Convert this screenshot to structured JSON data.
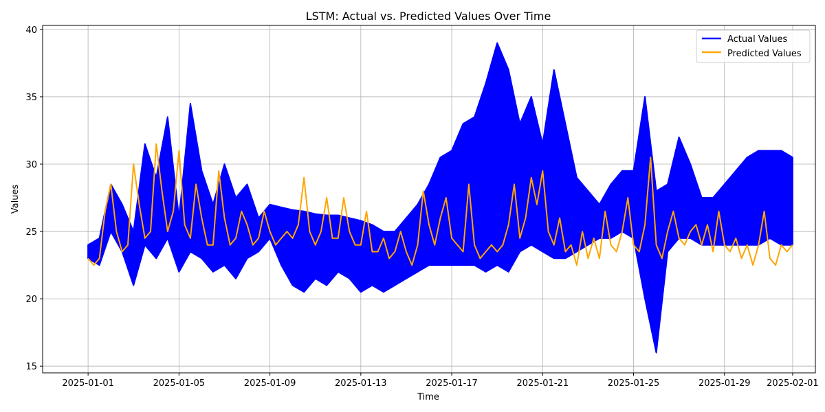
{
  "chart_data": {
    "type": "line",
    "title": "LSTM: Actual vs. Predicted Values Over Time",
    "xlabel": "Time",
    "ylabel": "Values",
    "grid": true,
    "legend_position": "top-right",
    "xlim": [
      "2024-12-30",
      "2025-02-02"
    ],
    "ylim": [
      14.5,
      40.3
    ],
    "x_ticks": [
      "2025-01-01",
      "2025-01-05",
      "2025-01-09",
      "2025-01-13",
      "2025-01-17",
      "2025-01-21",
      "2025-01-25",
      "2025-01-29",
      "2025-02-01"
    ],
    "y_ticks": [
      15,
      20,
      25,
      30,
      35,
      40
    ],
    "series": [
      {
        "name": "Actual Values",
        "color": "#0000ff",
        "points": [
          [
            "2025-01-01",
            24.0,
            23.0
          ],
          [
            "2025-01-01 12:00",
            24.5,
            22.5
          ],
          [
            "2025-01-02",
            28.5,
            25.0
          ],
          [
            "2025-01-02 12:00",
            27.0,
            23.5
          ],
          [
            "2025-01-03",
            25.0,
            21.0
          ],
          [
            "2025-01-03 12:00",
            31.5,
            24.0
          ],
          [
            "2025-01-04",
            29.0,
            23.0
          ],
          [
            "2025-01-04 12:00",
            33.5,
            24.5
          ],
          [
            "2025-01-05",
            26.0,
            22.0
          ],
          [
            "2025-01-05 12:00",
            34.5,
            23.5
          ],
          [
            "2025-01-06",
            29.5,
            23.0
          ],
          [
            "2025-01-06 12:00",
            27.0,
            22.0
          ],
          [
            "2025-01-07",
            30.0,
            22.5
          ],
          [
            "2025-01-07 12:00",
            27.5,
            21.5
          ],
          [
            "2025-01-08",
            28.5,
            23.0
          ],
          [
            "2025-01-08 12:00",
            26.0,
            23.5
          ],
          [
            "2025-01-09",
            27.0,
            24.5
          ],
          [
            "2025-01-09 12:00",
            26.8,
            22.5
          ],
          [
            "2025-01-10",
            26.6,
            21.0
          ],
          [
            "2025-01-10 12:00",
            26.5,
            20.5
          ],
          [
            "2025-01-11",
            26.3,
            21.5
          ],
          [
            "2025-01-11 12:00",
            26.2,
            21.0
          ],
          [
            "2025-01-12",
            26.2,
            22.0
          ],
          [
            "2025-01-12 12:00",
            26.0,
            21.5
          ],
          [
            "2025-01-13",
            25.8,
            20.5
          ],
          [
            "2025-01-13 12:00",
            25.5,
            21.0
          ],
          [
            "2025-01-14",
            25.0,
            20.5
          ],
          [
            "2025-01-14 12:00",
            25.0,
            21.0
          ],
          [
            "2025-01-15",
            26.0,
            21.5
          ],
          [
            "2025-01-15 12:00",
            27.0,
            22.0
          ],
          [
            "2025-01-16",
            28.5,
            22.5
          ],
          [
            "2025-01-16 12:00",
            30.5,
            22.5
          ],
          [
            "2025-01-17",
            31.0,
            22.5
          ],
          [
            "2025-01-17 12:00",
            33.0,
            22.5
          ],
          [
            "2025-01-18",
            33.5,
            22.5
          ],
          [
            "2025-01-18 12:00",
            36.0,
            22.0
          ],
          [
            "2025-01-19",
            39.0,
            22.5
          ],
          [
            "2025-01-19 12:00",
            37.0,
            22.0
          ],
          [
            "2025-01-20",
            33.0,
            23.5
          ],
          [
            "2025-01-20 12:00",
            35.0,
            24.0
          ],
          [
            "2025-01-21",
            31.5,
            23.5
          ],
          [
            "2025-01-21 12:00",
            37.0,
            23.0
          ],
          [
            "2025-01-22",
            33.0,
            23.0
          ],
          [
            "2025-01-22 12:00",
            29.0,
            23.5
          ],
          [
            "2025-01-23",
            28.0,
            24.0
          ],
          [
            "2025-01-23 12:00",
            27.0,
            24.5
          ],
          [
            "2025-01-24",
            28.5,
            24.5
          ],
          [
            "2025-01-24 12:00",
            29.5,
            25.0
          ],
          [
            "2025-01-25",
            29.5,
            24.5
          ],
          [
            "2025-01-25 12:00",
            35.0,
            20.0
          ],
          [
            "2025-01-26",
            28.0,
            16.0
          ],
          [
            "2025-01-26 12:00",
            28.5,
            23.5
          ],
          [
            "2025-01-27",
            32.0,
            24.5
          ],
          [
            "2025-01-27 12:00",
            30.0,
            24.5
          ],
          [
            "2025-01-28",
            27.5,
            24.0
          ],
          [
            "2025-01-28 12:00",
            27.5,
            24.0
          ],
          [
            "2025-01-29",
            28.5,
            24.0
          ],
          [
            "2025-01-29 12:00",
            29.5,
            24.0
          ],
          [
            "2025-01-30",
            30.5,
            24.0
          ],
          [
            "2025-01-30 12:00",
            31.0,
            24.0
          ],
          [
            "2025-01-31",
            31.0,
            24.5
          ],
          [
            "2025-01-31 12:00",
            31.0,
            24.0
          ],
          [
            "2025-02-01",
            30.5,
            24.0
          ]
        ]
      },
      {
        "name": "Predicted Values",
        "color": "#ffa500",
        "points": [
          [
            "2025-01-01",
            23.0
          ],
          [
            "2025-01-01 06:00",
            22.5
          ],
          [
            "2025-01-01 12:00",
            23.0
          ],
          [
            "2025-01-01 18:00",
            26.5
          ],
          [
            "2025-01-02",
            28.5
          ],
          [
            "2025-01-02 06:00",
            25.0
          ],
          [
            "2025-01-02 12:00",
            23.5
          ],
          [
            "2025-01-02 18:00",
            24.0
          ],
          [
            "2025-01-03",
            30.0
          ],
          [
            "2025-01-03 06:00",
            27.0
          ],
          [
            "2025-01-03 12:00",
            24.5
          ],
          [
            "2025-01-03 18:00",
            25.0
          ],
          [
            "2025-01-04",
            31.5
          ],
          [
            "2025-01-04 06:00",
            28.0
          ],
          [
            "2025-01-04 12:00",
            25.0
          ],
          [
            "2025-01-04 18:00",
            26.5
          ],
          [
            "2025-01-05",
            31.0
          ],
          [
            "2025-01-05 06:00",
            25.5
          ],
          [
            "2025-01-05 12:00",
            24.5
          ],
          [
            "2025-01-05 18:00",
            28.5
          ],
          [
            "2025-01-06",
            26.0
          ],
          [
            "2025-01-06 06:00",
            24.0
          ],
          [
            "2025-01-06 12:00",
            24.0
          ],
          [
            "2025-01-06 18:00",
            29.5
          ],
          [
            "2025-01-07",
            26.0
          ],
          [
            "2025-01-07 06:00",
            24.0
          ],
          [
            "2025-01-07 12:00",
            24.5
          ],
          [
            "2025-01-07 18:00",
            26.5
          ],
          [
            "2025-01-08",
            25.5
          ],
          [
            "2025-01-08 06:00",
            24.0
          ],
          [
            "2025-01-08 12:00",
            24.5
          ],
          [
            "2025-01-08 18:00",
            26.5
          ],
          [
            "2025-01-09",
            25.0
          ],
          [
            "2025-01-09 06:00",
            24.0
          ],
          [
            "2025-01-09 12:00",
            24.5
          ],
          [
            "2025-01-09 18:00",
            25.0
          ],
          [
            "2025-01-10",
            24.5
          ],
          [
            "2025-01-10 06:00",
            25.5
          ],
          [
            "2025-01-10 12:00",
            29.0
          ],
          [
            "2025-01-10 18:00",
            25.0
          ],
          [
            "2025-01-11",
            24.0
          ],
          [
            "2025-01-11 06:00",
            25.0
          ],
          [
            "2025-01-11 12:00",
            27.5
          ],
          [
            "2025-01-11 18:00",
            24.5
          ],
          [
            "2025-01-12",
            24.5
          ],
          [
            "2025-01-12 06:00",
            27.5
          ],
          [
            "2025-01-12 12:00",
            25.0
          ],
          [
            "2025-01-12 18:00",
            24.0
          ],
          [
            "2025-01-13",
            24.0
          ],
          [
            "2025-01-13 06:00",
            26.5
          ],
          [
            "2025-01-13 12:00",
            23.5
          ],
          [
            "2025-01-13 18:00",
            23.5
          ],
          [
            "2025-01-14",
            24.5
          ],
          [
            "2025-01-14 06:00",
            23.0
          ],
          [
            "2025-01-14 12:00",
            23.5
          ],
          [
            "2025-01-14 18:00",
            25.0
          ],
          [
            "2025-01-15",
            23.5
          ],
          [
            "2025-01-15 06:00",
            22.5
          ],
          [
            "2025-01-15 12:00",
            24.0
          ],
          [
            "2025-01-15 18:00",
            28.0
          ],
          [
            "2025-01-16",
            25.5
          ],
          [
            "2025-01-16 06:00",
            24.0
          ],
          [
            "2025-01-16 12:00",
            26.0
          ],
          [
            "2025-01-16 18:00",
            27.5
          ],
          [
            "2025-01-17",
            24.5
          ],
          [
            "2025-01-17 06:00",
            24.0
          ],
          [
            "2025-01-17 12:00",
            23.5
          ],
          [
            "2025-01-17 18:00",
            28.5
          ],
          [
            "2025-01-18",
            24.0
          ],
          [
            "2025-01-18 06:00",
            23.0
          ],
          [
            "2025-01-18 12:00",
            23.5
          ],
          [
            "2025-01-18 18:00",
            24.0
          ],
          [
            "2025-01-19",
            23.5
          ],
          [
            "2025-01-19 06:00",
            24.0
          ],
          [
            "2025-01-19 12:00",
            25.5
          ],
          [
            "2025-01-19 18:00",
            28.5
          ],
          [
            "2025-01-20",
            24.5
          ],
          [
            "2025-01-20 06:00",
            26.0
          ],
          [
            "2025-01-20 12:00",
            29.0
          ],
          [
            "2025-01-20 18:00",
            27.0
          ],
          [
            "2025-01-21",
            29.5
          ],
          [
            "2025-01-21 06:00",
            25.0
          ],
          [
            "2025-01-21 12:00",
            24.0
          ],
          [
            "2025-01-21 18:00",
            26.0
          ],
          [
            "2025-01-22",
            23.5
          ],
          [
            "2025-01-22 06:00",
            24.0
          ],
          [
            "2025-01-22 12:00",
            22.5
          ],
          [
            "2025-01-22 18:00",
            25.0
          ],
          [
            "2025-01-23",
            23.0
          ],
          [
            "2025-01-23 06:00",
            24.5
          ],
          [
            "2025-01-23 12:00",
            23.0
          ],
          [
            "2025-01-23 18:00",
            26.5
          ],
          [
            "2025-01-24",
            24.0
          ],
          [
            "2025-01-24 06:00",
            23.5
          ],
          [
            "2025-01-24 12:00",
            25.0
          ],
          [
            "2025-01-24 18:00",
            27.5
          ],
          [
            "2025-01-25",
            24.0
          ],
          [
            "2025-01-25 06:00",
            23.5
          ],
          [
            "2025-01-25 12:00",
            25.5
          ],
          [
            "2025-01-25 18:00",
            30.5
          ],
          [
            "2025-01-26",
            24.0
          ],
          [
            "2025-01-26 06:00",
            23.0
          ],
          [
            "2025-01-26 12:00",
            25.0
          ],
          [
            "2025-01-26 18:00",
            26.5
          ],
          [
            "2025-01-27",
            24.5
          ],
          [
            "2025-01-27 06:00",
            24.0
          ],
          [
            "2025-01-27 12:00",
            25.0
          ],
          [
            "2025-01-27 18:00",
            25.5
          ],
          [
            "2025-01-28",
            24.0
          ],
          [
            "2025-01-28 06:00",
            25.5
          ],
          [
            "2025-01-28 12:00",
            23.5
          ],
          [
            "2025-01-28 18:00",
            26.5
          ],
          [
            "2025-01-29",
            24.0
          ],
          [
            "2025-01-29 06:00",
            23.5
          ],
          [
            "2025-01-29 12:00",
            24.5
          ],
          [
            "2025-01-29 18:00",
            23.0
          ],
          [
            "2025-01-30",
            24.0
          ],
          [
            "2025-01-30 06:00",
            22.5
          ],
          [
            "2025-01-30 12:00",
            24.0
          ],
          [
            "2025-01-30 18:00",
            26.5
          ],
          [
            "2025-01-31",
            23.0
          ],
          [
            "2025-01-31 06:00",
            22.5
          ],
          [
            "2025-01-31 12:00",
            24.0
          ],
          [
            "2025-01-31 18:00",
            23.5
          ],
          [
            "2025-02-01",
            24.0
          ]
        ]
      }
    ]
  }
}
